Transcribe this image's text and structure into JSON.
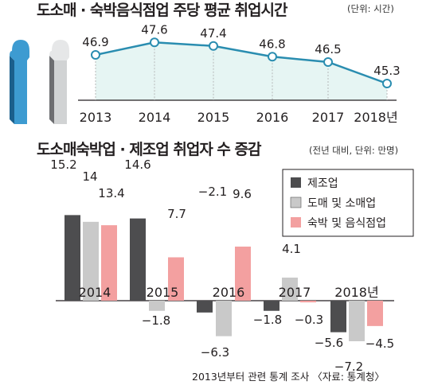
{
  "colors": {
    "line": "#2a8db0",
    "area": "#e6f5f3",
    "manufacturing": "#4d4d4f",
    "wholesale_retail": "#c9c9c9",
    "accommodation_food": "#f3a0a0"
  },
  "chart_data": [
    {
      "type": "line",
      "title": "도소매 · 숙박음식점업 주당 평균 취업시간",
      "unit": "(단위: 시간)",
      "categories": [
        "2013",
        "2014",
        "2015",
        "2016",
        "2017",
        "2018년"
      ],
      "values": [
        46.9,
        47.6,
        47.4,
        46.8,
        46.5,
        45.3
      ],
      "value_labels": [
        "46.9",
        "47.6",
        "47.4",
        "46.8",
        "46.5",
        "45.3"
      ],
      "grid": false,
      "decoration": "person-silhouette-icons"
    },
    {
      "type": "bar",
      "title": "도소매숙박업 · 제조업 취업자 수 증감",
      "unit": "(전년 대비, 단위: 만명)",
      "categories": [
        "2014",
        "2015",
        "2016",
        "2017",
        "2018년"
      ],
      "series": [
        {
          "name": "제조업",
          "values": [
            15.2,
            14.6,
            -2.1,
            -1.8,
            -5.6
          ],
          "labels": [
            "15.2",
            "14.6",
            "−2.1",
            "−1.8",
            "−5.6"
          ]
        },
        {
          "name": "도매 및 소매업",
          "values": [
            14,
            -1.8,
            -6.3,
            4.1,
            -7.2
          ],
          "labels": [
            "14",
            "−1.8",
            "−6.3",
            "4.1",
            "−7.2"
          ]
        },
        {
          "name": "숙박 및 음식점업",
          "values": [
            13.4,
            7.7,
            9.6,
            -0.3,
            -4.5
          ],
          "labels": [
            "13.4",
            "7.7",
            "9.6",
            "−0.3",
            "−4.5"
          ]
        }
      ],
      "legend": "top-right",
      "grid": false
    }
  ],
  "source": "2013년부터 관련 통계 조사 〈자료: 통계청〉"
}
